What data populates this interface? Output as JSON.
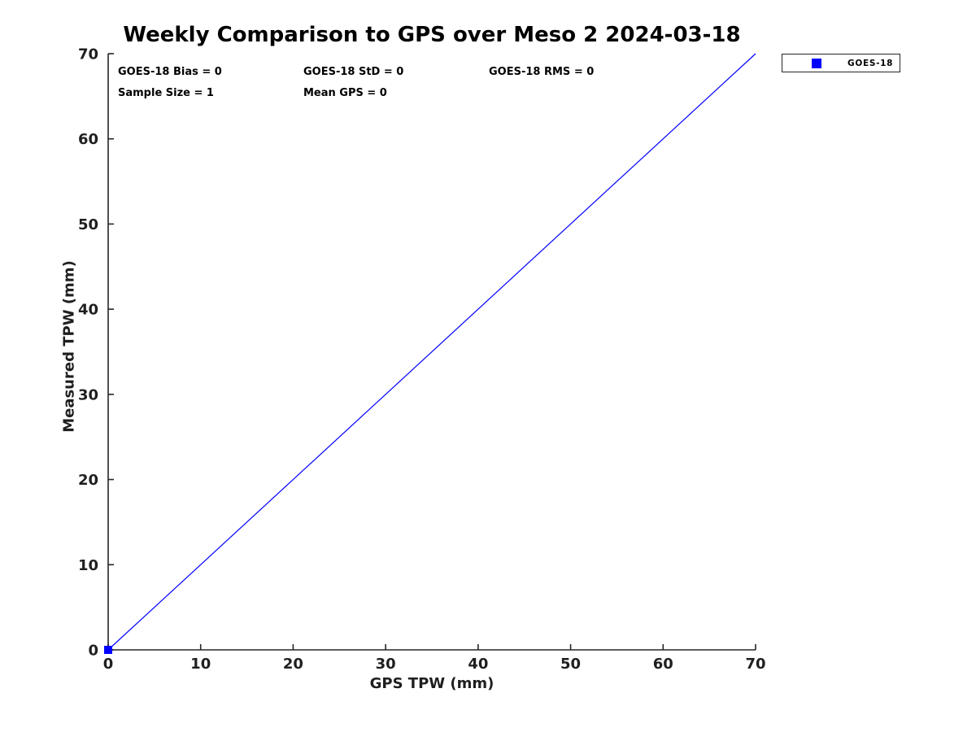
{
  "chart_data": {
    "type": "scatter",
    "title": "Weekly Comparison to GPS over Meso 2 2024-03-18",
    "xlabel": "GPS TPW (mm)",
    "ylabel": "Measured TPW (mm)",
    "xlim": [
      0,
      70
    ],
    "ylim": [
      0,
      70
    ],
    "x_ticks": [
      0,
      10,
      20,
      30,
      40,
      50,
      60,
      70
    ],
    "y_ticks": [
      0,
      10,
      20,
      30,
      40,
      50,
      60,
      70
    ],
    "grid": false,
    "series": [
      {
        "name": "GOES-18",
        "marker": "square",
        "color": "#0000ff",
        "points": [
          {
            "x": 0,
            "y": 0
          }
        ]
      }
    ],
    "identity_line": {
      "x": [
        0,
        70
      ],
      "y": [
        0,
        70
      ],
      "color": "#0000ff"
    },
    "stats_annotations": {
      "row1": [
        "GOES-18 Bias = 0",
        "GOES-18 StD = 0",
        "GOES-18 RMS = 0"
      ],
      "row2": [
        "Sample Size = 1",
        "Mean GPS = 0"
      ]
    },
    "legend": {
      "position": "outside-top-right",
      "entries": [
        {
          "label": "GOES-18",
          "marker": "square",
          "color": "#0000ff"
        }
      ]
    }
  },
  "colors": {
    "series_blue": "#0000ff",
    "axis_line": "#262626",
    "tick_text": "#1f1f1f",
    "text": "#000000",
    "background": "#ffffff"
  }
}
